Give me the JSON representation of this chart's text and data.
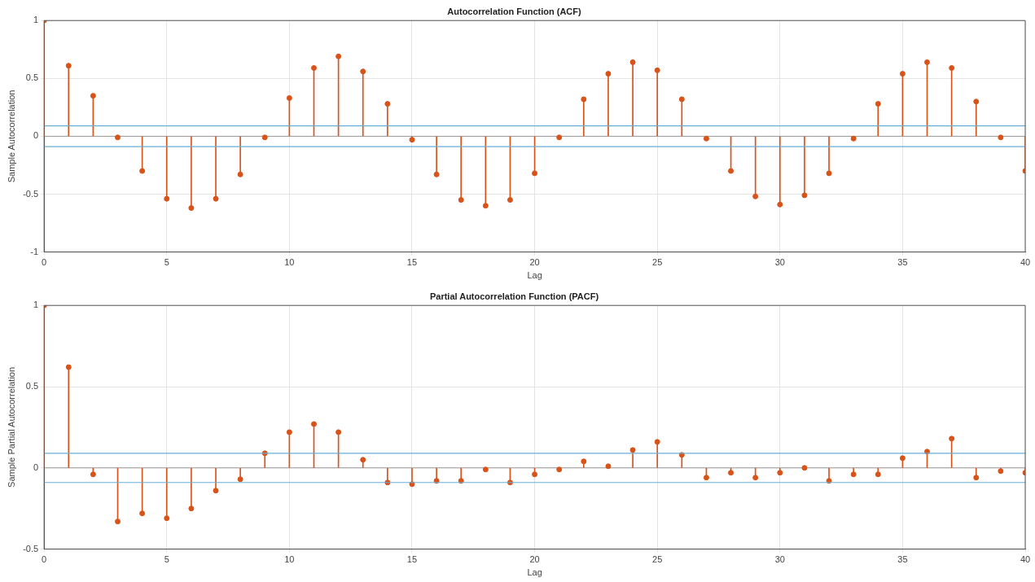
{
  "chart_data": [
    {
      "type": "lollipop",
      "title": "Autocorrelation Function (ACF)",
      "xlabel": "Lag",
      "ylabel": "Sample Autocorrelation",
      "x": [
        0,
        1,
        2,
        3,
        4,
        5,
        6,
        7,
        8,
        9,
        10,
        11,
        12,
        13,
        14,
        15,
        16,
        17,
        18,
        19,
        20,
        21,
        22,
        23,
        24,
        25,
        26,
        27,
        28,
        29,
        30,
        31,
        32,
        33,
        34,
        35,
        36,
        37,
        38,
        39,
        40
      ],
      "series": [
        {
          "color": "#d95319",
          "values": [
            1,
            0.61,
            0.35,
            -0.01,
            -0.3,
            -0.54,
            -0.62,
            -0.54,
            -0.33,
            -0.01,
            0.33,
            0.59,
            0.69,
            0.56,
            0.28,
            -0.03,
            -0.33,
            -0.55,
            -0.6,
            -0.55,
            -0.32,
            -0.01,
            0.32,
            0.54,
            0.64,
            0.57,
            0.32,
            -0.02,
            -0.3,
            -0.52,
            -0.59,
            -0.51,
            -0.32,
            -0.02,
            0.28,
            0.54,
            0.64,
            0.59,
            0.3,
            -0.01,
            -0.3
          ]
        }
      ],
      "xlim": [
        0,
        40
      ],
      "xticks": [
        0,
        5,
        10,
        15,
        20,
        25,
        30,
        35,
        40
      ],
      "ylim": [
        -1,
        1
      ],
      "yticks": [
        -1,
        -0.5,
        0,
        0.5,
        1
      ],
      "ref_lines": [
        {
          "axis": "y",
          "value": 0.09,
          "color": "#6aaed6"
        },
        {
          "axis": "y",
          "value": -0.09,
          "color": "#6aaed6"
        }
      ],
      "grid": true,
      "marker": "circle"
    },
    {
      "type": "lollipop",
      "title": "Partial Autocorrelation Function (PACF)",
      "xlabel": "Lag",
      "ylabel": "Sample Partial Autocorrelation",
      "x": [
        0,
        1,
        2,
        3,
        4,
        5,
        6,
        7,
        8,
        9,
        10,
        11,
        12,
        13,
        14,
        15,
        16,
        17,
        18,
        19,
        20,
        21,
        22,
        23,
        24,
        25,
        26,
        27,
        28,
        29,
        30,
        31,
        32,
        33,
        34,
        35,
        36,
        37,
        38,
        39,
        40
      ],
      "series": [
        {
          "color": "#d95319",
          "values": [
            1,
            0.62,
            -0.04,
            -0.33,
            -0.28,
            -0.31,
            -0.25,
            -0.14,
            -0.07,
            0.09,
            0.22,
            0.27,
            0.22,
            0.05,
            -0.09,
            -0.1,
            -0.08,
            -0.08,
            -0.01,
            -0.09,
            -0.04,
            -0.01,
            0.04,
            0.01,
            0.11,
            0.16,
            0.08,
            -0.06,
            -0.03,
            -0.06,
            -0.03,
            0,
            -0.08,
            -0.04,
            -0.04,
            0.06,
            0.1,
            0.18,
            -0.06,
            -0.02,
            -0.03
          ]
        }
      ],
      "xlim": [
        0,
        40
      ],
      "xticks": [
        0,
        5,
        10,
        15,
        20,
        25,
        30,
        35,
        40
      ],
      "ylim": [
        -0.5,
        1
      ],
      "yticks": [
        -0.5,
        0,
        0.5,
        1
      ],
      "ref_lines": [
        {
          "axis": "y",
          "value": 0.09,
          "color": "#6aaed6"
        },
        {
          "axis": "y",
          "value": -0.09,
          "color": "#6aaed6"
        }
      ],
      "grid": true,
      "marker": "circle"
    }
  ]
}
